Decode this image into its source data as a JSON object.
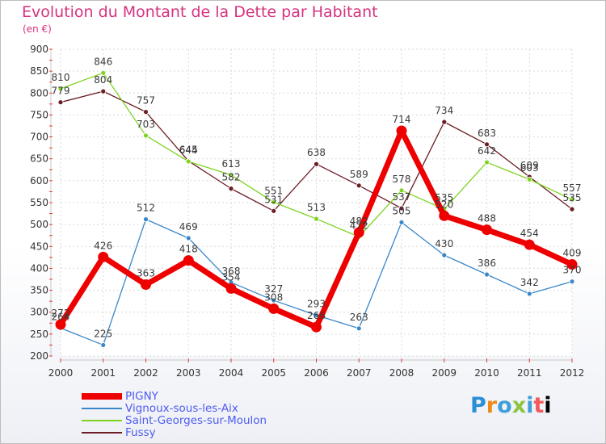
{
  "chart_data": {
    "type": "line",
    "title": "Evolution du Montant de la Dette par Habitant",
    "subtitle": "(en €)",
    "x": [
      "2000",
      "2001",
      "2002",
      "2003",
      "2004",
      "2005",
      "2006",
      "2007",
      "2008",
      "2009",
      "2010",
      "2011",
      "2012"
    ],
    "ylim": [
      200,
      900
    ],
    "yticks": [
      200,
      250,
      300,
      350,
      400,
      450,
      500,
      550,
      600,
      650,
      700,
      750,
      800,
      850,
      900
    ],
    "grid": true,
    "legend_position": "bottom-left",
    "series": [
      {
        "name": "PIGNY",
        "color": "#ee0000",
        "values": [
          272,
          426,
          363,
          418,
          354,
          308,
          266,
          482,
          714,
          520,
          488,
          454,
          409
        ]
      },
      {
        "name": "Vignoux-sous-les-Aix",
        "color": "#3a87c8",
        "values": [
          264,
          225,
          512,
          469,
          368,
          327,
          293,
          263,
          505,
          430,
          386,
          342,
          370
        ]
      },
      {
        "name": "Saint-Georges-sur-Moulon",
        "color": "#7ed321",
        "values": [
          810,
          846,
          703,
          644,
          613,
          551,
          513,
          472,
          578,
          535,
          642,
          603,
          557
        ]
      },
      {
        "name": "Fussy",
        "color": "#6b1c24",
        "values": [
          779,
          804,
          757,
          645,
          582,
          531,
          638,
          589,
          537,
          734,
          683,
          609,
          535
        ]
      }
    ]
  },
  "brand": {
    "letters": [
      "P",
      "r",
      "o",
      "x",
      "i",
      "t",
      "i"
    ]
  }
}
